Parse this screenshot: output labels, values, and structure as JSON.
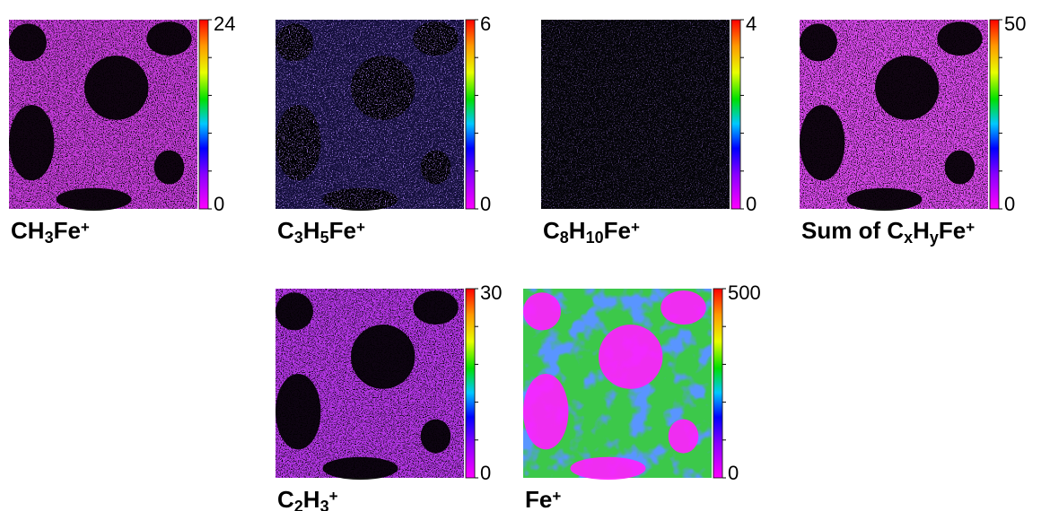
{
  "panels": [
    {
      "label": [
        {
          "text": "CH"
        },
        {
          "text": "3",
          "script": "sub"
        },
        {
          "text": "Fe"
        },
        {
          "text": "+",
          "script": "sup"
        }
      ],
      "scale_max": 24,
      "scale_min": 0
    },
    {
      "label": [
        {
          "text": "C"
        },
        {
          "text": "3",
          "script": "sub"
        },
        {
          "text": "H"
        },
        {
          "text": "5",
          "script": "sub"
        },
        {
          "text": "Fe"
        },
        {
          "text": "+",
          "script": "sup"
        }
      ],
      "scale_max": 6,
      "scale_min": 0
    },
    {
      "label": [
        {
          "text": "C"
        },
        {
          "text": "8",
          "script": "sub"
        },
        {
          "text": "H"
        },
        {
          "text": "10",
          "script": "sub"
        },
        {
          "text": "Fe"
        },
        {
          "text": "+",
          "script": "sup"
        }
      ],
      "scale_max": 4,
      "scale_min": 0
    },
    {
      "label": [
        {
          "text": "Sum of C"
        },
        {
          "text": "x",
          "script": "sub"
        },
        {
          "text": "H"
        },
        {
          "text": "y",
          "script": "sub"
        },
        {
          "text": "Fe"
        },
        {
          "text": "+",
          "script": "sup"
        }
      ],
      "scale_max": 50,
      "scale_min": 0
    },
    {
      "label": [
        {
          "text": "C"
        },
        {
          "text": "2",
          "script": "sub"
        },
        {
          "text": "H"
        },
        {
          "text": "3",
          "script": "sub"
        },
        {
          "text": "+",
          "script": "sup"
        }
      ],
      "scale_max": 30,
      "scale_min": 0
    },
    {
      "label": [
        {
          "text": "Fe"
        },
        {
          "text": "+",
          "script": "sup"
        }
      ],
      "scale_max": 500,
      "scale_min": 0
    }
  ]
}
